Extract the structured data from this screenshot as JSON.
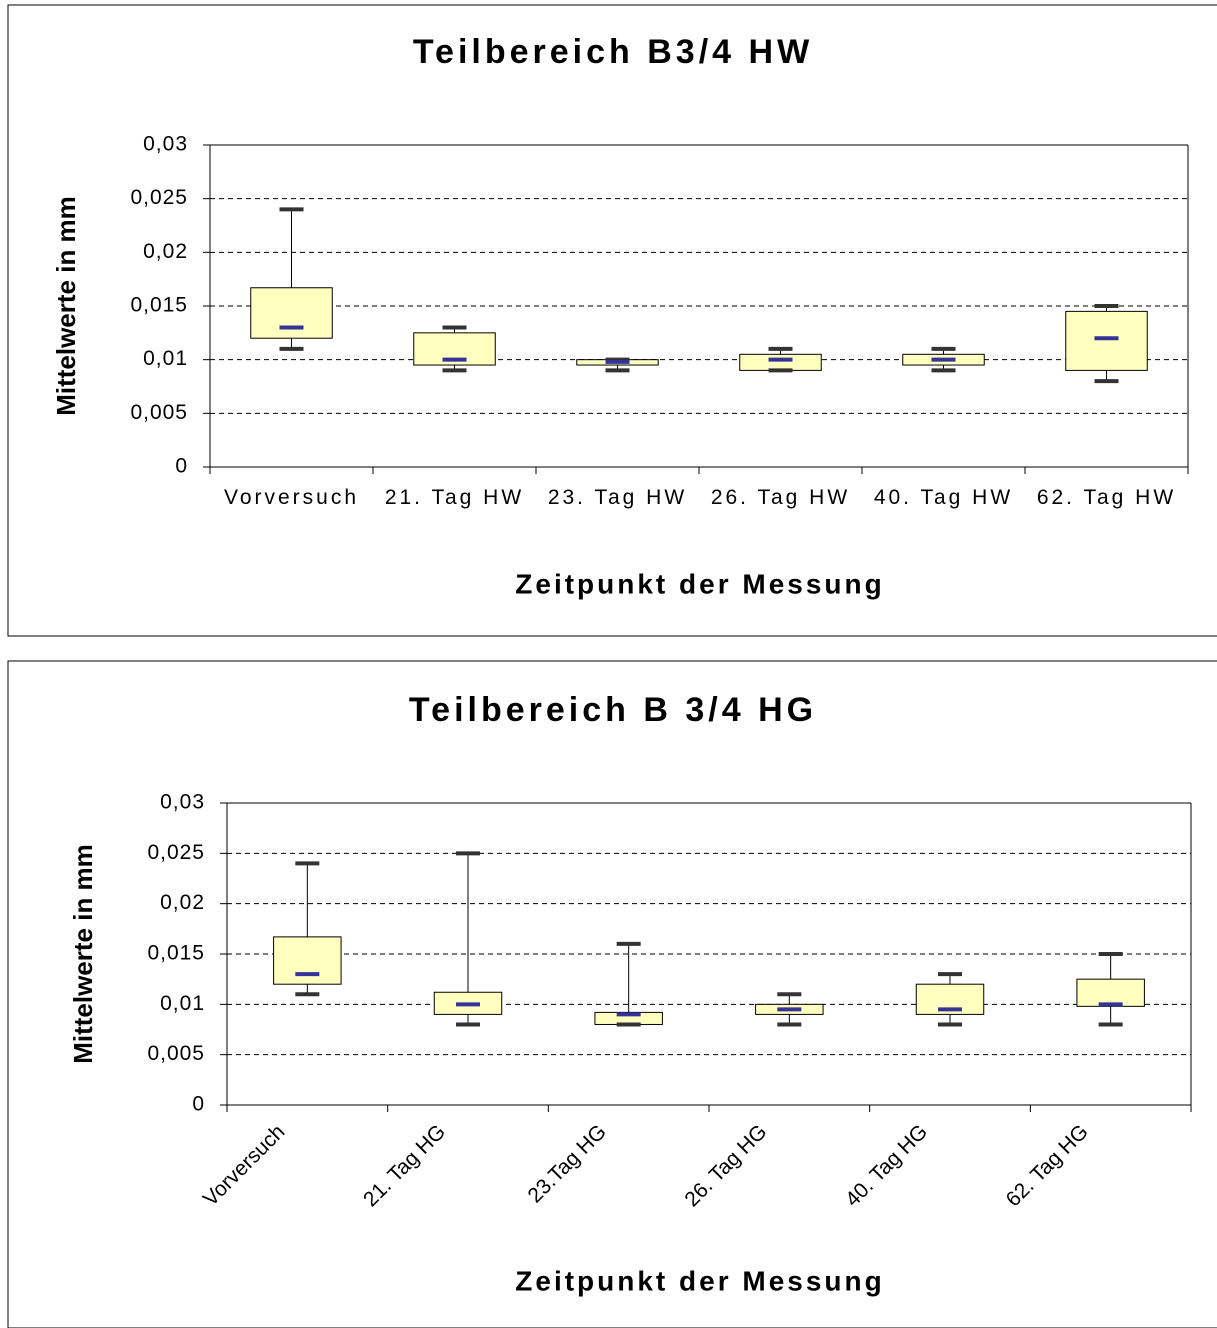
{
  "chart_data": [
    {
      "type": "box",
      "title": "Teilbereich B3/4 HW",
      "x_label": "Zeitpunkt der Messung",
      "y_label": "Mittelwerte in mm",
      "categories": [
        "Vorversuch",
        "21. Tag HW",
        "23. Tag HW",
        "26. Tag HW",
        "40. Tag HW",
        "62. Tag HW"
      ],
      "min": [
        0.011,
        0.009,
        0.009,
        0.009,
        0.009,
        0.008
      ],
      "q1": [
        0.012,
        0.0095,
        0.0095,
        0.009,
        0.0095,
        0.009
      ],
      "median": [
        0.013,
        0.01,
        0.0098,
        0.01,
        0.01,
        0.012
      ],
      "q3": [
        0.0167,
        0.0125,
        0.01,
        0.0105,
        0.0105,
        0.0145
      ],
      "max": [
        0.024,
        0.013,
        0.01,
        0.011,
        0.011,
        0.015
      ],
      "box_color": "#ffffc0",
      "median_color": "#333399",
      "whisker_color": "#333333",
      "ylim": [
        0,
        0.03
      ],
      "yticks": [
        0,
        {
          "value": 0.005,
          "label": "0,005"
        },
        {
          "value": 0.01,
          "label": "0,01"
        },
        {
          "value": 0.015,
          "label": "0,015"
        },
        {
          "value": 0.02,
          "label": "0,02"
        },
        {
          "value": 0.025,
          "label": "0,025"
        },
        {
          "value": 0.03,
          "label": "0,03"
        }
      ],
      "grid": true,
      "label_rotation": 0
    },
    {
      "type": "box",
      "title": "Teilbereich B 3/4 HG",
      "x_label": "Zeitpunkt der Messung",
      "y_label": "Mittelwerte in mm",
      "categories": [
        "Vorversuch",
        "21. Tag HG",
        "23.Tag HG",
        "26. Tag HG",
        "40. Tag HG",
        "62. Tag HG"
      ],
      "min": [
        0.011,
        0.008,
        0.008,
        0.008,
        0.008,
        0.008
      ],
      "q1": [
        0.012,
        0.009,
        0.008,
        0.009,
        0.009,
        0.0098
      ],
      "median": [
        0.013,
        0.01,
        0.009,
        0.0095,
        0.0095,
        0.01
      ],
      "q3": [
        0.0167,
        0.0112,
        0.0092,
        0.01,
        0.012,
        0.0125
      ],
      "max": [
        0.024,
        0.025,
        0.016,
        0.011,
        0.013,
        0.015
      ],
      "box_color": "#ffffc0",
      "median_color": "#333399",
      "whisker_color": "#333333",
      "ylim": [
        0,
        0.03
      ],
      "yticks": [
        0,
        {
          "value": 0.005,
          "label": "0,005"
        },
        {
          "value": 0.01,
          "label": "0,01"
        },
        {
          "value": 0.015,
          "label": "0,015"
        },
        {
          "value": 0.02,
          "label": "0,02"
        },
        {
          "value": 0.025,
          "label": "0,025"
        },
        {
          "value": 0.03,
          "label": "0,03"
        }
      ],
      "grid": true,
      "label_rotation": -45
    }
  ]
}
